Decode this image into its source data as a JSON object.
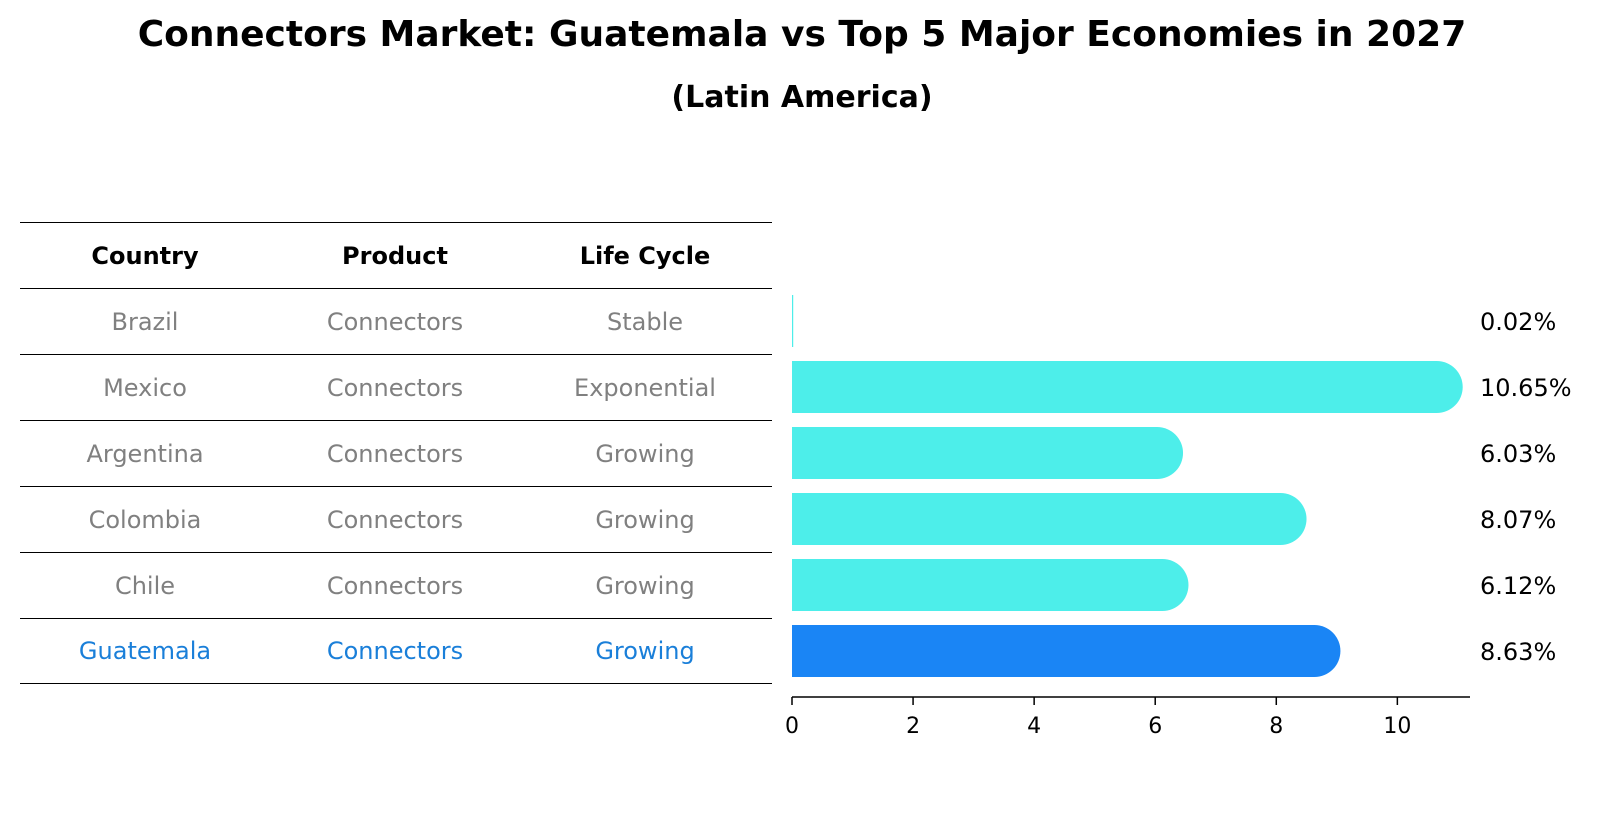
{
  "chart_data": {
    "type": "bar",
    "orientation": "horizontal",
    "title": "Connectors Market: Guatemala vs Top 5 Major Economies in 2027",
    "subtitle": "(Latin America)",
    "table": {
      "headers": [
        "Country",
        "Product",
        "Life Cycle"
      ],
      "rows": [
        [
          "Brazil",
          "Connectors",
          "Stable"
        ],
        [
          "Mexico",
          "Connectors",
          "Exponential"
        ],
        [
          "Argentina",
          "Connectors",
          "Growing"
        ],
        [
          "Colombia",
          "Connectors",
          "Growing"
        ],
        [
          "Chile",
          "Connectors",
          "Growing"
        ],
        [
          "Guatemala",
          "Connectors",
          "Growing"
        ]
      ],
      "highlight_row": 5
    },
    "categories": [
      "Brazil",
      "Mexico",
      "Argentina",
      "Colombia",
      "Chile",
      "Guatemala"
    ],
    "values": [
      0.02,
      10.65,
      6.03,
      8.07,
      6.12,
      8.63
    ],
    "value_labels": [
      "0.02%",
      "10.65%",
      "6.03%",
      "8.07%",
      "6.12%",
      "8.63%"
    ],
    "highlight_index": 5,
    "xlim": [
      0,
      11.2
    ],
    "xticks": [
      0,
      2,
      4,
      6,
      8,
      10
    ],
    "colors": {
      "bar": "#4deeea",
      "highlight_bar": "#1a85f5",
      "highlight_text": "#1a7fd9",
      "row_text": "#808080"
    }
  }
}
